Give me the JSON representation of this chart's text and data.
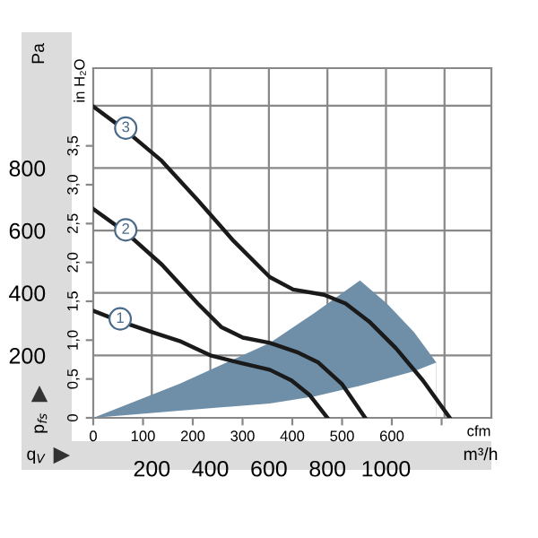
{
  "chart_data": {
    "type": "line",
    "ylabel": "Pa",
    "xlabel": "m³/h",
    "x2label": "cfm",
    "y2label": "in H₂O",
    "annotations": [
      "p$_{fs}$",
      "q$_{V}$"
    ],
    "xlim": [
      0,
      1360
    ],
    "xticks": [
      200,
      400,
      600,
      800,
      1000,
      {
        "value": 1200,
        "label": null
      }
    ],
    "ylim": [
      0,
      1120
    ],
    "yticks": [
      200,
      400,
      600,
      800,
      {
        "value": 1000,
        "label": null
      }
    ],
    "x2lim": [
      0,
      800
    ],
    "x2ticks": [
      0,
      100,
      200,
      300,
      400,
      500,
      600,
      {
        "value": 700,
        "label": null
      }
    ],
    "y2lim": [
      0,
      4.5
    ],
    "y2ticks": [
      0,
      {
        "value": 0.5,
        "label": "0,5"
      },
      {
        "value": 1,
        "label": "1,0"
      },
      {
        "value": 1.5,
        "label": "1,5"
      },
      {
        "value": 2,
        "label": "2,0"
      },
      {
        "value": 2.5,
        "label": "2,5"
      },
      {
        "value": 3,
        "label": "3,0"
      },
      {
        "value": 3.5,
        "label": "3,5"
      }
    ],
    "grid": true,
    "marker": "none",
    "line_style": "solid",
    "series": [
      {
        "type": "area",
        "color": "#6f8fa8",
        "x": [
          0,
          295,
          603,
          757,
          911,
          1003,
          1096,
          1172
        ],
        "values": [
          0,
          109,
          240,
          337,
          440,
          366,
          274,
          177
        ]
      },
      {
        "type": "area",
        "color": "#ffffff",
        "x": [
          0,
          295,
          603,
          757,
          911,
          1003,
          1096,
          1172
        ],
        "values": [
          0,
          23,
          46,
          69,
          103,
          126,
          149,
          177
        ]
      },
      {
        "name": "3",
        "color": "#1a1a1a",
        "x": [
          0,
          111,
          234,
          357,
          480,
          603,
          683,
          788,
          862,
          942,
          1034,
          1126,
          1218
        ],
        "values": [
          997,
          920,
          823,
          697,
          566,
          451,
          411,
          394,
          366,
          309,
          223,
          120,
          0
        ]
      },
      {
        "name": "2",
        "color": "#1a1a1a",
        "x": [
          0,
          111,
          234,
          357,
          437,
          511,
          603,
          695,
          769,
          849,
          929
        ],
        "values": [
          669,
          594,
          491,
          366,
          291,
          257,
          240,
          211,
          177,
          109,
          0
        ]
      },
      {
        "name": "1",
        "color": "#1a1a1a",
        "x": [
          0,
          92,
          203,
          295,
          400,
          498,
          603,
          677,
          738,
          800
        ],
        "values": [
          343,
          309,
          274,
          246,
          200,
          177,
          154,
          120,
          74,
          0
        ]
      }
    ]
  }
}
